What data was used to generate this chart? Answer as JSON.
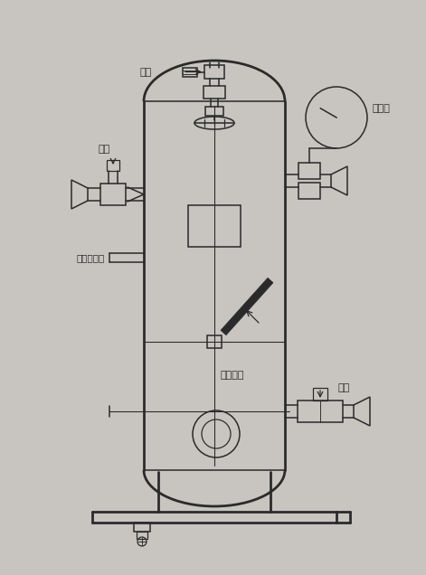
{
  "bg_color": "#c8c4c0",
  "line_color": "#2a2a2a",
  "lw": 1.1,
  "fig_w": 4.71,
  "fig_h": 6.36,
  "labels": {
    "jianYa": "减压",
    "jinYou": "进油",
    "yeLiJiJieKou": "液位计接口",
    "dianJiaReQi": "电加热器",
    "fangYou": "放油",
    "yaLiBiao": "压力表"
  }
}
